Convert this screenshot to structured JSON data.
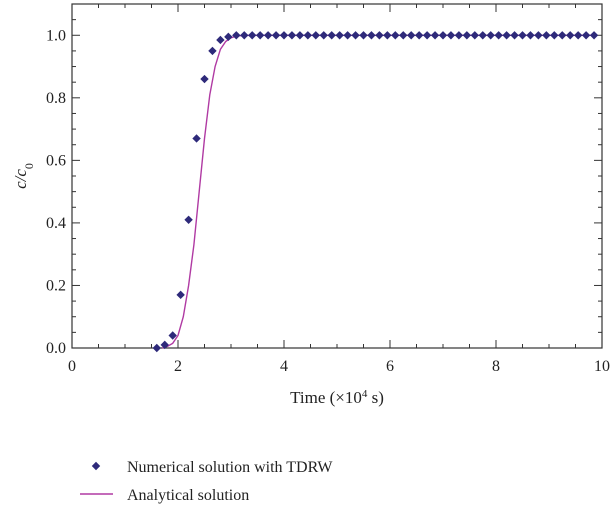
{
  "chart_data": {
    "type": "scatter",
    "xlabel_prefix": "Time (×10",
    "xlabel_exponent": "4",
    "xlabel_suffix": " s)",
    "ylabel_main": "c/c",
    "ylabel_sub": "0",
    "xlim": [
      0,
      10
    ],
    "ylim": [
      0,
      1.1
    ],
    "x_ticks": [
      0,
      2,
      4,
      6,
      8,
      10
    ],
    "x_tick_labels": [
      "0",
      "2",
      "4",
      "6",
      "8",
      "10"
    ],
    "y_ticks": [
      0.0,
      0.2,
      0.4,
      0.6,
      0.8,
      1.0
    ],
    "y_tick_labels": [
      "0.0",
      "0.2",
      "0.4",
      "0.6",
      "0.8",
      "1.0"
    ],
    "grid": false,
    "legend_position": "bottom",
    "series": [
      {
        "name": "Numerical solution with TDRW",
        "kind": "markers",
        "marker": "diamond",
        "color": "#2e2a7a",
        "x": [
          1.6,
          1.75,
          1.9,
          2.05,
          2.2,
          2.35,
          2.5,
          2.65,
          2.8,
          2.95,
          3.1,
          3.25,
          3.4,
          3.55,
          3.7,
          3.85,
          4.0,
          4.15,
          4.3,
          4.45,
          4.6,
          4.75,
          4.9,
          5.05,
          5.2,
          5.35,
          5.5,
          5.65,
          5.8,
          5.95,
          6.1,
          6.25,
          6.4,
          6.55,
          6.7,
          6.85,
          7.0,
          7.15,
          7.3,
          7.45,
          7.6,
          7.75,
          7.9,
          8.05,
          8.2,
          8.35,
          8.5,
          8.65,
          8.8,
          8.95,
          9.1,
          9.25,
          9.4,
          9.55,
          9.7,
          9.85
        ],
        "y": [
          0.0,
          0.01,
          0.04,
          0.17,
          0.41,
          0.67,
          0.86,
          0.95,
          0.985,
          0.995,
          1.0,
          1.0,
          1.0,
          1.0,
          1.0,
          1.0,
          1.0,
          1.0,
          1.0,
          1.0,
          1.0,
          1.0,
          1.0,
          1.0,
          1.0,
          1.0,
          1.0,
          1.0,
          1.0,
          1.0,
          1.0,
          1.0,
          1.0,
          1.0,
          1.0,
          1.0,
          1.0,
          1.0,
          1.0,
          1.0,
          1.0,
          1.0,
          1.0,
          1.0,
          1.0,
          1.0,
          1.0,
          1.0,
          1.0,
          1.0,
          1.0,
          1.0,
          1.0,
          1.0,
          1.0,
          1.0
        ]
      },
      {
        "name": "Analytical solution",
        "kind": "line",
        "color": "#b03aa3",
        "x": [
          1.7,
          1.8,
          1.9,
          2.0,
          2.1,
          2.2,
          2.3,
          2.4,
          2.5,
          2.6,
          2.7,
          2.8,
          2.9,
          3.0,
          3.1,
          3.2,
          3.4,
          3.6,
          4.0,
          5.0,
          6.0,
          7.0,
          8.0,
          9.0,
          9.9
        ],
        "y": [
          0.0,
          0.005,
          0.015,
          0.04,
          0.1,
          0.2,
          0.33,
          0.5,
          0.67,
          0.81,
          0.9,
          0.955,
          0.98,
          0.992,
          0.997,
          0.999,
          1.0,
          1.0,
          1.0,
          1.0,
          1.0,
          1.0,
          1.0,
          1.0,
          1.0
        ]
      }
    ]
  }
}
